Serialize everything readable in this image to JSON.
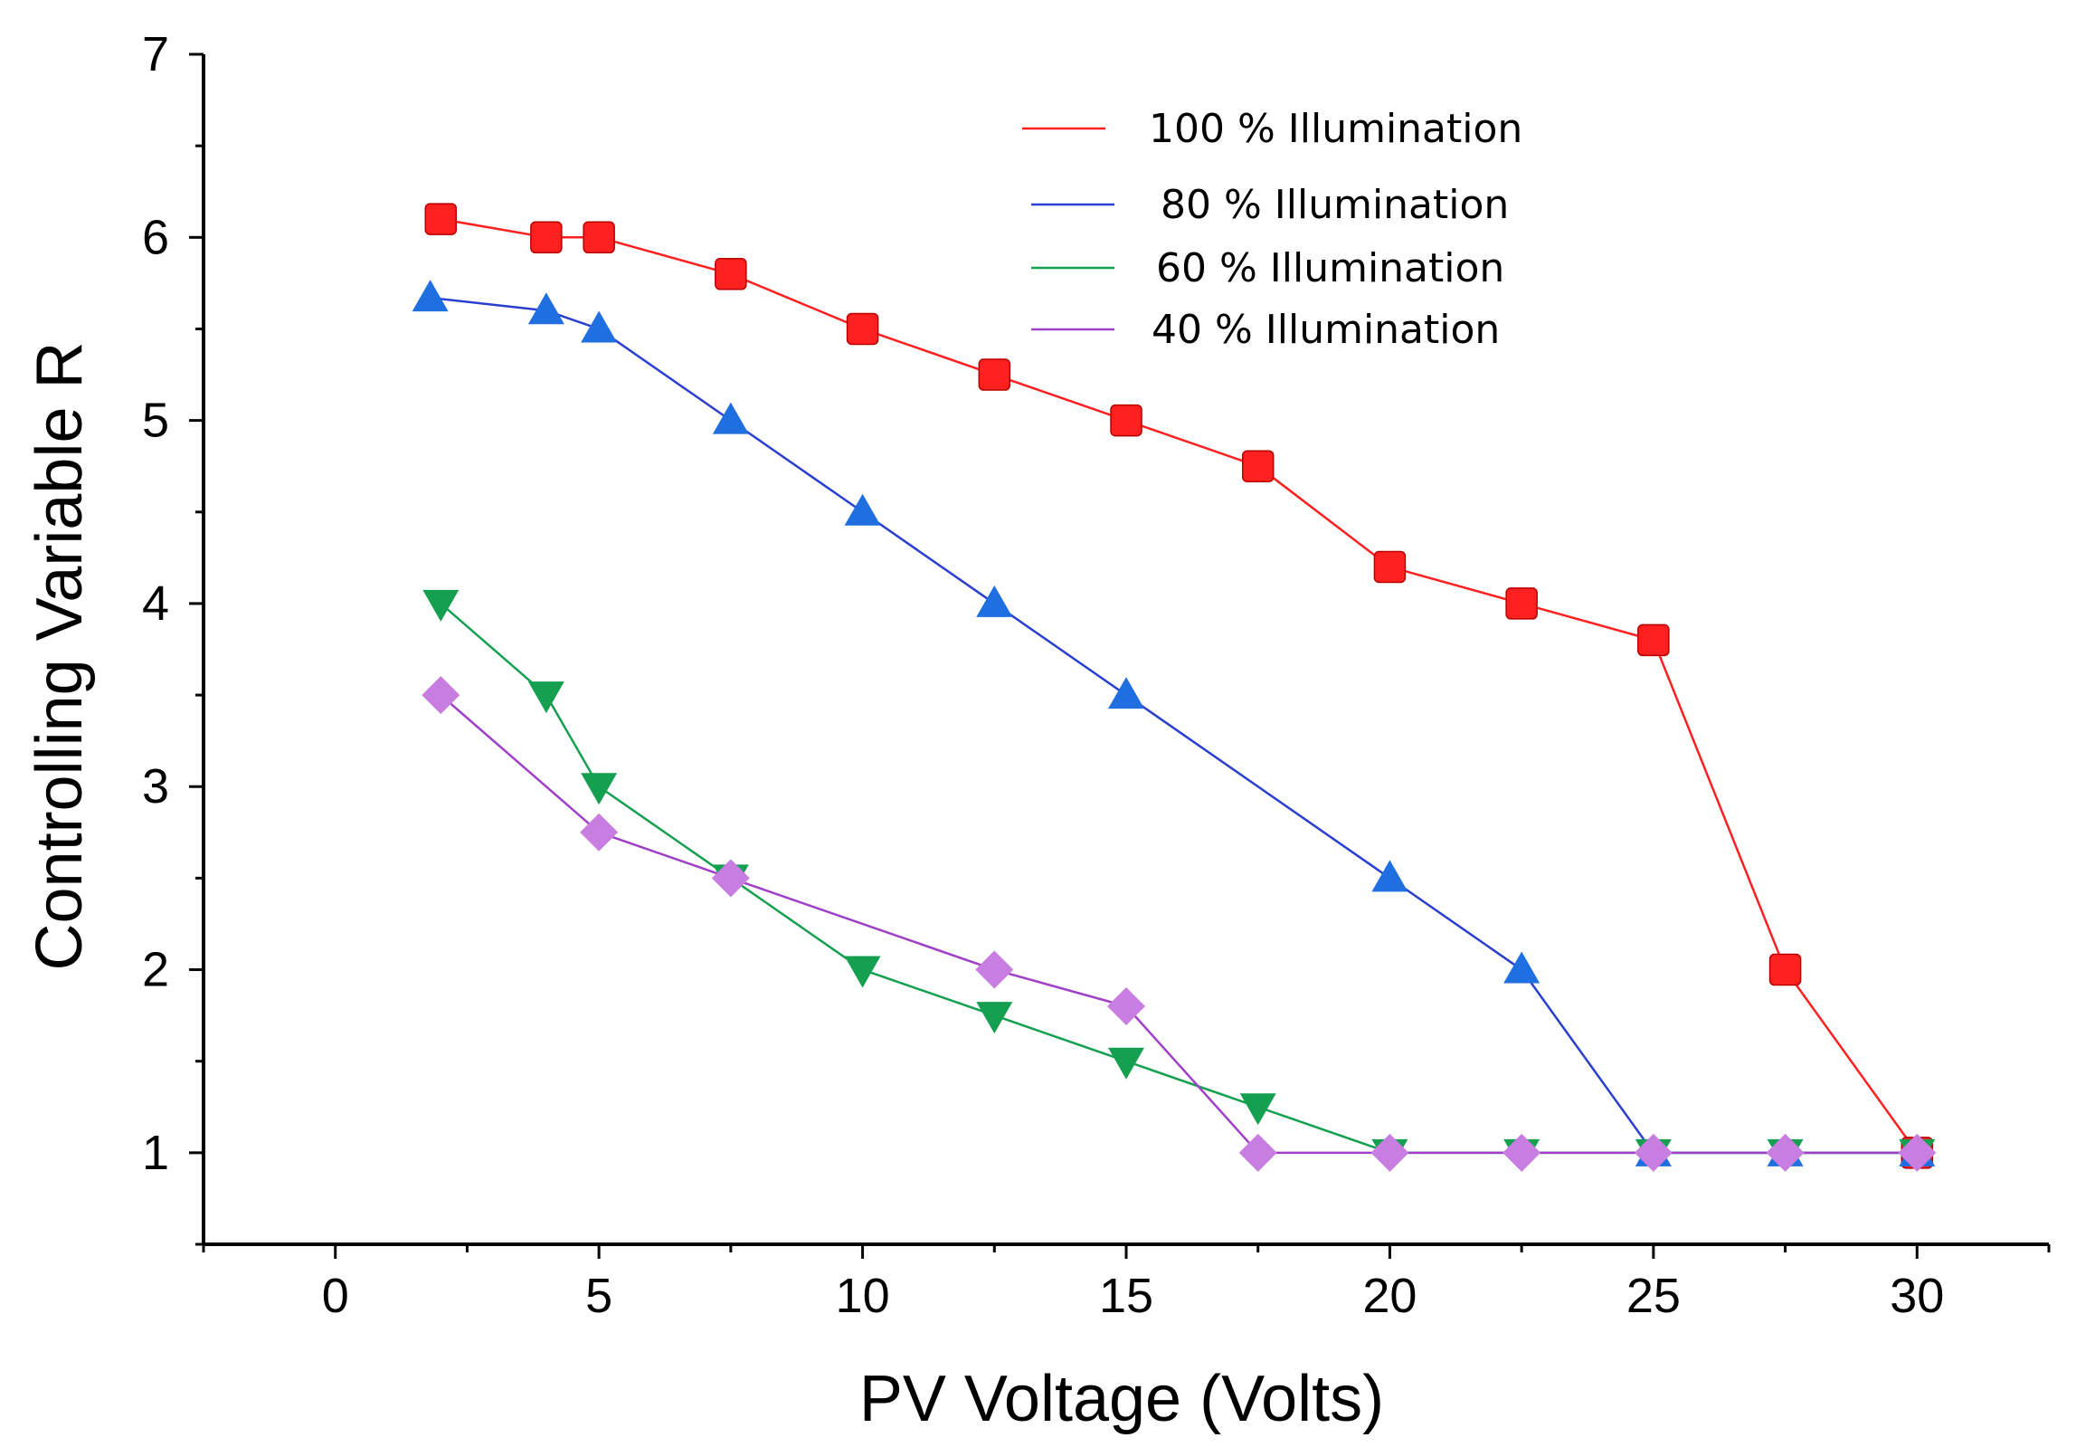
{
  "chart_data": {
    "type": "line",
    "title": "",
    "xlabel": "PV Voltage (Volts)",
    "ylabel": "Controlling Variable R",
    "xlim": [
      -2.5,
      32.5
    ],
    "ylim": [
      0.5,
      7
    ],
    "xticks": [
      0,
      5,
      10,
      15,
      20,
      25,
      30
    ],
    "yticks": [
      1,
      2,
      3,
      4,
      5,
      6,
      7
    ],
    "xtick_labels": [
      "0",
      "5",
      "10",
      "15",
      "20",
      "25",
      "30"
    ],
    "ytick_labels": [
      "1",
      "2",
      "3",
      "4",
      "5",
      "6",
      "7"
    ],
    "grid": false,
    "legend_position": "top-right",
    "series": [
      {
        "name": "100 % Illumination",
        "color": "#ff2020",
        "marker": "square",
        "x": [
          2,
          4,
          5,
          7.5,
          10,
          12.5,
          15,
          17.5,
          20,
          22.5,
          25,
          27.5,
          30
        ],
        "y": [
          6.1,
          6.0,
          6.0,
          5.8,
          5.5,
          5.25,
          5.0,
          4.75,
          4.2,
          4.0,
          3.8,
          2.0,
          1.0
        ]
      },
      {
        "name": "80 % Illumination",
        "color": "#1f6fe0",
        "line_color": "#2a3fd0",
        "marker": "triangle-up",
        "x": [
          1.8,
          4,
          5,
          7.5,
          10,
          12.5,
          15,
          20,
          22.5,
          25,
          27.5,
          30
        ],
        "y": [
          5.67,
          5.6,
          5.5,
          5.0,
          4.5,
          4.0,
          3.5,
          2.5,
          2.0,
          1.0,
          1.0,
          1.0
        ]
      },
      {
        "name": "60 % Illumination",
        "color": "#14a050",
        "marker": "triangle-down",
        "x": [
          2,
          4,
          5,
          7.5,
          10,
          12.5,
          15,
          17.5,
          20,
          22.5,
          25,
          27.5,
          30
        ],
        "y": [
          4.0,
          3.5,
          3.0,
          2.5,
          2.0,
          1.75,
          1.5,
          1.25,
          1.0,
          1.0,
          1.0,
          1.0,
          1.0
        ]
      },
      {
        "name": "40 % Illumination",
        "color": "#c77ee0",
        "line_color": "#a040c8",
        "marker": "diamond",
        "x": [
          2,
          5,
          7.5,
          12.5,
          15,
          17.5,
          20,
          22.5,
          25,
          27.5,
          30
        ],
        "y": [
          3.5,
          2.75,
          2.5,
          2.0,
          1.8,
          1.0,
          1.0,
          1.0,
          1.0,
          1.0,
          1.0
        ]
      }
    ]
  }
}
